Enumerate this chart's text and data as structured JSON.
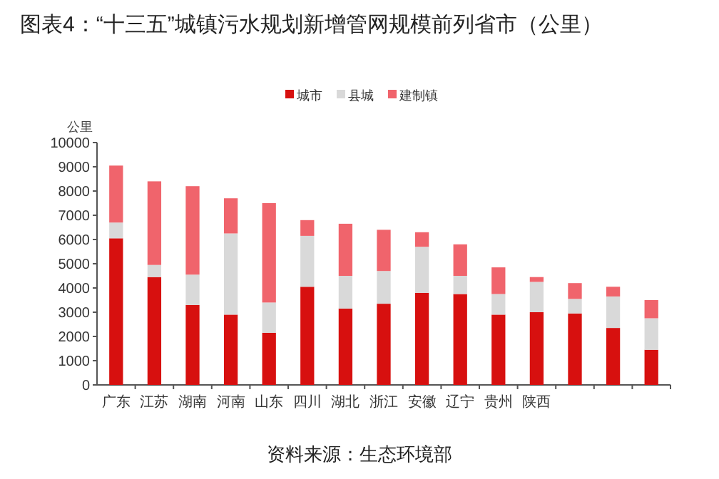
{
  "chart_data": {
    "type": "bar",
    "title": "图表4：“十三五”城镇污水规划新增管网规模前列省市（公里）",
    "ylabel": "公里",
    "categories": [
      "广东",
      "江苏",
      "湖南",
      "河南",
      "山东",
      "四川",
      "湖北",
      "浙江",
      "安徽",
      "辽宁",
      "贵州",
      "陕西",
      null,
      null,
      null
    ],
    "series": [
      {
        "name": "城市",
        "color": "#d7100f",
        "values": [
          6050,
          4450,
          3300,
          2900,
          2150,
          4050,
          3150,
          3350,
          3800,
          3750,
          2900,
          3000,
          2950,
          2350,
          1450
        ]
      },
      {
        "name": "县城",
        "color": "#d9d9d9",
        "values": [
          650,
          500,
          1250,
          3350,
          1250,
          2100,
          1350,
          1350,
          1900,
          750,
          850,
          1250,
          600,
          1300,
          1300
        ]
      },
      {
        "name": "建制镇",
        "color": "#f0646c",
        "values": [
          2350,
          3450,
          3650,
          1450,
          4100,
          650,
          2150,
          1700,
          600,
          1300,
          1100,
          200,
          650,
          400,
          750
        ]
      }
    ],
    "stacked": true,
    "ylim": [
      0,
      10000
    ],
    "yticks": [
      0,
      1000,
      2000,
      3000,
      4000,
      5000,
      6000,
      7000,
      8000,
      9000,
      10000
    ],
    "grid": false,
    "legend": "top",
    "annotations": [
      "资料来源：生态环境部"
    ]
  }
}
